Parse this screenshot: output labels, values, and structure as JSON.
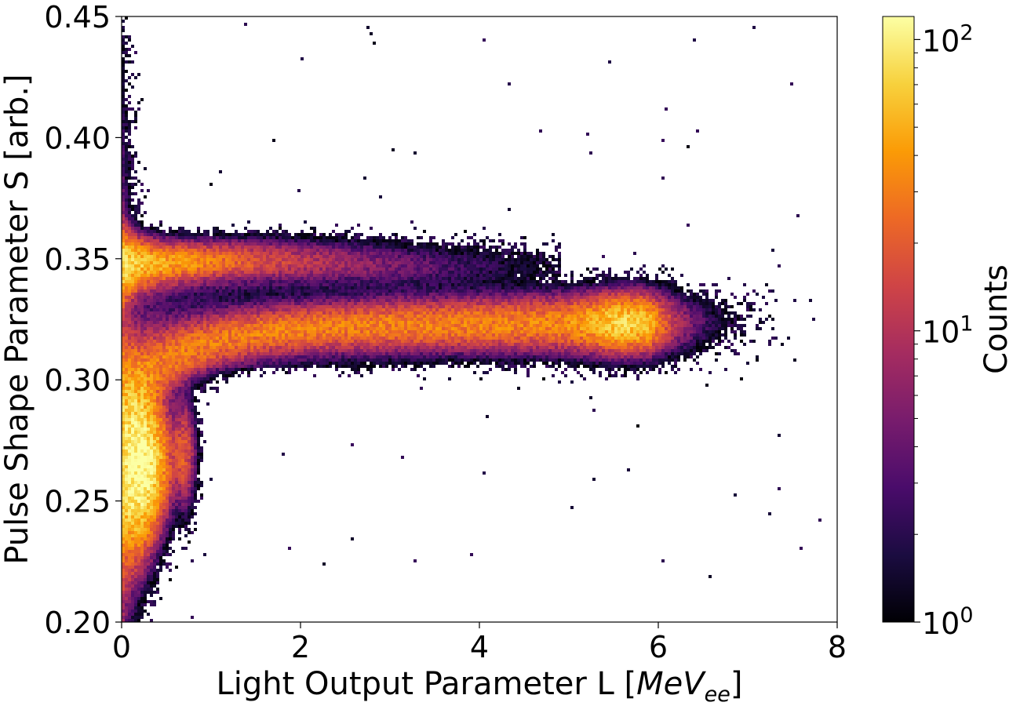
{
  "chart_data": {
    "type": "heatmap",
    "title": "",
    "xlabel": "Light Output Parameter L [",
    "xlabel_math": "MeV",
    "xlabel_math_sub": "ee",
    "xlabel_close": "]",
    "ylabel": "Pulse Shape Parameter S [arb.]",
    "xlim": [
      0,
      8
    ],
    "ylim": [
      0.2,
      0.45
    ],
    "x_ticks": [
      0,
      2,
      4,
      6,
      8
    ],
    "x_tick_labels": [
      "0",
      "2",
      "4",
      "6",
      "8"
    ],
    "y_ticks": [
      0.2,
      0.25,
      0.3,
      0.35,
      0.4,
      0.45
    ],
    "y_tick_labels": [
      "0.20",
      "0.25",
      "0.30",
      "0.35",
      "0.40",
      "0.45"
    ],
    "grid": false,
    "colormap": "inferno",
    "color_scale": "log",
    "colorbar": {
      "label": "Counts",
      "range": [
        1,
        120
      ],
      "ticks": [
        1,
        10,
        100
      ],
      "tick_labels": [
        {
          "base": "10",
          "exp": "0"
        },
        {
          "base": "10",
          "exp": "1"
        },
        {
          "base": "10",
          "exp": "2"
        }
      ],
      "stops": [
        "#000004",
        "#1b0c41",
        "#4a0c6b",
        "#781c6d",
        "#a52c60",
        "#cf4446",
        "#ed6925",
        "#fb9b06",
        "#f7d13d",
        "#fcffa4"
      ]
    },
    "bands": [
      {
        "name": "",
        "description_hidden": true,
        "points": [
          [
            0.05,
            0.345
          ],
          [
            0.3,
            0.346
          ],
          [
            1.0,
            0.349
          ],
          [
            2.0,
            0.349
          ],
          [
            3.0,
            0.347
          ],
          [
            4.0,
            0.346
          ],
          [
            4.5,
            0.345
          ]
        ]
      },
      {
        "name": "",
        "description_hidden": true,
        "points": [
          [
            0.1,
            0.27
          ],
          [
            0.4,
            0.295
          ],
          [
            1.0,
            0.305
          ],
          [
            2.0,
            0.312
          ],
          [
            3.0,
            0.317
          ],
          [
            4.0,
            0.32
          ],
          [
            5.0,
            0.323
          ],
          [
            5.8,
            0.324
          ],
          [
            6.5,
            0.322
          ],
          [
            7.6,
            0.318
          ]
        ]
      }
    ]
  }
}
